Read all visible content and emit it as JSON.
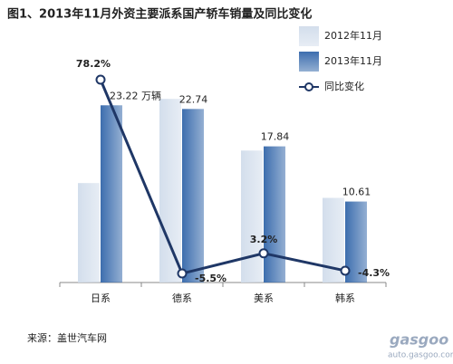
{
  "chart_data": {
    "type": "bar",
    "title": "图1、2013年11月外资主要派系国产轿车销量及同比变化",
    "categories": [
      "日系",
      "德系",
      "美系",
      "韩系"
    ],
    "series": [
      {
        "name": "2012年11月",
        "color": "#d3deec",
        "values": [
          13.03,
          24.06,
          17.29,
          11.09
        ]
      },
      {
        "name": "2013年11月",
        "color": "#3d6eae",
        "values": [
          23.22,
          22.74,
          17.84,
          10.61
        ],
        "value_labels": [
          "23.22 万辆",
          "22.74",
          "17.84",
          "10.61"
        ]
      },
      {
        "name": "同比变化",
        "type": "line",
        "axis": "y2",
        "color": "#1f3766",
        "values": [
          78.2,
          -5.5,
          3.2,
          -4.3
        ],
        "value_labels": [
          "78.2%",
          "-5.5%",
          "3.2%",
          "-4.3%"
        ]
      }
    ],
    "ylim": [
      0,
      28
    ],
    "y2lim": [
      -9.4,
      82.9
    ],
    "legend": "top-right",
    "source": "来源：盖世汽车网",
    "watermark": [
      "gasgoo",
      "auto.gasgoo.com"
    ]
  }
}
